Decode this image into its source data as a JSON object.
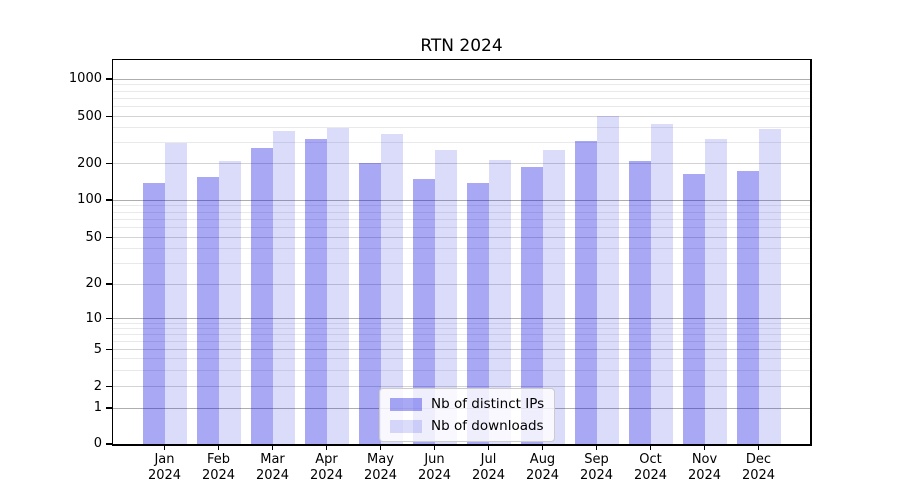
{
  "chart_data": {
    "type": "bar",
    "title": "RTN 2024",
    "categories": [
      "Jan 2024",
      "Feb 2024",
      "Mar 2024",
      "Apr 2024",
      "May 2024",
      "Jun 2024",
      "Jul 2024",
      "Aug 2024",
      "Sep 2024",
      "Oct 2024",
      "Nov 2024",
      "Dec 2024"
    ],
    "series": [
      {
        "name": "Nb of distinct IPs",
        "color": "rgba(0,0,225,0.34)",
        "values": [
          137,
          154,
          270,
          320,
          201,
          148,
          139,
          186,
          309,
          211,
          164,
          172
        ]
      },
      {
        "name": "Nb of downloads",
        "color": "rgba(0,0,220,0.14)",
        "values": [
          300,
          210,
          378,
          403,
          356,
          260,
          216,
          262,
          505,
          433,
          324,
          390
        ]
      }
    ],
    "xlabel": "",
    "ylabel": "",
    "y_axis": {
      "scale": "log-like (0 at baseline, labeled ticks 1-2-5 per decade)",
      "tick_values": [
        0,
        1,
        2,
        5,
        10,
        20,
        50,
        100,
        200,
        500,
        1000
      ],
      "tick_labels": [
        "0",
        "1",
        "2",
        "5",
        "10",
        "20",
        "50",
        "100",
        "200",
        "500",
        "1000"
      ],
      "range": [
        0,
        1300
      ]
    },
    "legend": {
      "position": "lower center"
    },
    "grid": true,
    "colors": {
      "bar_distinct_ips": "rgba(0,0,225,0.34)",
      "bar_downloads": "rgba(0,0,220,0.14)",
      "grid_decade": "#aeaeae",
      "grid_labeled": "#d4d4d4",
      "grid_minor": "#e9e9e9"
    }
  }
}
